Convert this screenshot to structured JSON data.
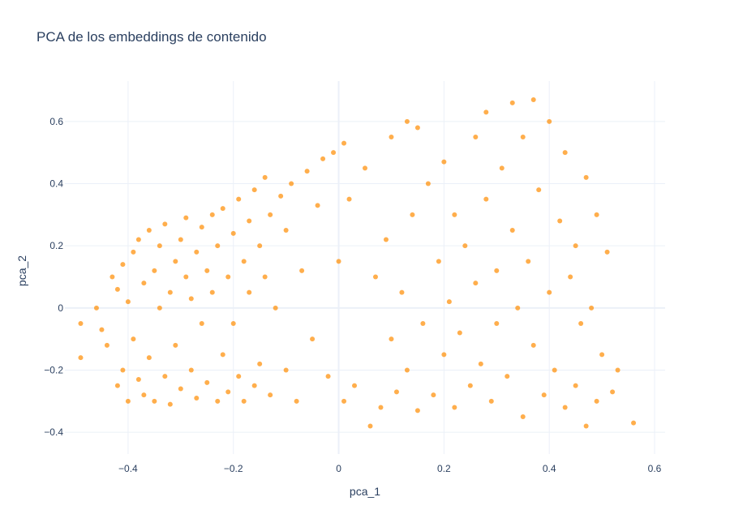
{
  "chart_data": {
    "type": "scatter",
    "title": "PCA de los embeddings de contenido",
    "xlabel": "pca_1",
    "ylabel": "pca_2",
    "xlim": [
      -0.52,
      0.62
    ],
    "ylim": [
      -0.47,
      0.73
    ],
    "xticks": [
      -0.4,
      -0.2,
      0,
      0.2,
      0.4,
      0.6
    ],
    "xtick_labels": [
      "−0.4",
      "−0.2",
      "0",
      "0.2",
      "0.4",
      "0.6"
    ],
    "yticks": [
      -0.4,
      -0.2,
      0,
      0.2,
      0.4,
      0.6
    ],
    "ytick_labels": [
      "−0.4",
      "−0.2",
      "0",
      "0.2",
      "0.4",
      "0.6"
    ],
    "grid": true,
    "marker_color": "#ff8c00",
    "background": "#ffffff",
    "grid_color": "#ebf0f8",
    "text_color": "#2a3f5f",
    "points": [
      [
        -0.49,
        -0.16
      ],
      [
        -0.49,
        -0.05
      ],
      [
        -0.46,
        0.0
      ],
      [
        -0.45,
        -0.07
      ],
      [
        -0.44,
        -0.12
      ],
      [
        -0.43,
        0.1
      ],
      [
        -0.42,
        0.06
      ],
      [
        -0.42,
        -0.25
      ],
      [
        -0.41,
        -0.2
      ],
      [
        -0.41,
        0.14
      ],
      [
        -0.4,
        0.02
      ],
      [
        -0.4,
        -0.3
      ],
      [
        -0.39,
        0.18
      ],
      [
        -0.39,
        -0.1
      ],
      [
        -0.38,
        0.22
      ],
      [
        -0.38,
        -0.23
      ],
      [
        -0.37,
        0.08
      ],
      [
        -0.37,
        -0.28
      ],
      [
        -0.36,
        0.25
      ],
      [
        -0.36,
        -0.16
      ],
      [
        -0.35,
        0.12
      ],
      [
        -0.35,
        -0.3
      ],
      [
        -0.34,
        0.0
      ],
      [
        -0.34,
        0.2
      ],
      [
        -0.33,
        -0.22
      ],
      [
        -0.33,
        0.27
      ],
      [
        -0.32,
        0.05
      ],
      [
        -0.32,
        -0.31
      ],
      [
        -0.31,
        0.15
      ],
      [
        -0.31,
        -0.12
      ],
      [
        -0.3,
        0.22
      ],
      [
        -0.3,
        -0.26
      ],
      [
        -0.29,
        0.1
      ],
      [
        -0.29,
        0.29
      ],
      [
        -0.28,
        -0.2
      ],
      [
        -0.28,
        0.03
      ],
      [
        -0.27,
        0.18
      ],
      [
        -0.27,
        -0.29
      ],
      [
        -0.26,
        0.26
      ],
      [
        -0.26,
        -0.05
      ],
      [
        -0.25,
        0.12
      ],
      [
        -0.25,
        -0.24
      ],
      [
        -0.24,
        0.3
      ],
      [
        -0.24,
        0.05
      ],
      [
        -0.23,
        -0.3
      ],
      [
        -0.23,
        0.2
      ],
      [
        -0.22,
        -0.15
      ],
      [
        -0.22,
        0.32
      ],
      [
        -0.21,
        0.1
      ],
      [
        -0.21,
        -0.27
      ],
      [
        -0.2,
        0.24
      ],
      [
        -0.2,
        -0.05
      ],
      [
        -0.19,
        0.35
      ],
      [
        -0.19,
        -0.22
      ],
      [
        -0.18,
        0.15
      ],
      [
        -0.18,
        -0.3
      ],
      [
        -0.17,
        0.28
      ],
      [
        -0.17,
        0.05
      ],
      [
        -0.16,
        0.38
      ],
      [
        -0.16,
        -0.25
      ],
      [
        -0.15,
        0.2
      ],
      [
        -0.15,
        -0.18
      ],
      [
        -0.14,
        0.42
      ],
      [
        -0.14,
        0.1
      ],
      [
        -0.13,
        -0.28
      ],
      [
        -0.13,
        0.3
      ],
      [
        -0.12,
        0.0
      ],
      [
        -0.11,
        0.36
      ],
      [
        -0.1,
        -0.2
      ],
      [
        -0.1,
        0.25
      ],
      [
        -0.09,
        0.4
      ],
      [
        -0.08,
        -0.3
      ],
      [
        -0.07,
        0.12
      ],
      [
        -0.06,
        0.44
      ],
      [
        -0.05,
        -0.1
      ],
      [
        -0.04,
        0.33
      ],
      [
        -0.03,
        0.48
      ],
      [
        -0.02,
        -0.22
      ],
      [
        -0.01,
        0.5
      ],
      [
        0.0,
        0.15
      ],
      [
        0.01,
        0.53
      ],
      [
        0.01,
        -0.3
      ],
      [
        0.02,
        0.35
      ],
      [
        0.03,
        -0.25
      ],
      [
        0.05,
        0.45
      ],
      [
        0.06,
        -0.38
      ],
      [
        0.07,
        0.1
      ],
      [
        0.08,
        -0.32
      ],
      [
        0.09,
        0.22
      ],
      [
        0.1,
        -0.1
      ],
      [
        0.1,
        0.55
      ],
      [
        0.11,
        -0.27
      ],
      [
        0.12,
        0.05
      ],
      [
        0.13,
        0.6
      ],
      [
        0.13,
        -0.2
      ],
      [
        0.14,
        0.3
      ],
      [
        0.15,
        -0.33
      ],
      [
        0.15,
        0.58
      ],
      [
        0.16,
        -0.05
      ],
      [
        0.17,
        0.4
      ],
      [
        0.18,
        -0.28
      ],
      [
        0.19,
        0.15
      ],
      [
        0.2,
        -0.15
      ],
      [
        0.2,
        0.47
      ],
      [
        0.21,
        0.02
      ],
      [
        0.22,
        -0.32
      ],
      [
        0.22,
        0.3
      ],
      [
        0.23,
        -0.08
      ],
      [
        0.24,
        0.2
      ],
      [
        0.25,
        -0.25
      ],
      [
        0.26,
        0.55
      ],
      [
        0.26,
        0.08
      ],
      [
        0.27,
        -0.18
      ],
      [
        0.28,
        0.35
      ],
      [
        0.28,
        0.63
      ],
      [
        0.29,
        -0.3
      ],
      [
        0.3,
        0.12
      ],
      [
        0.3,
        -0.05
      ],
      [
        0.31,
        0.45
      ],
      [
        0.32,
        -0.22
      ],
      [
        0.33,
        0.25
      ],
      [
        0.33,
        0.66
      ],
      [
        0.34,
        0.0
      ],
      [
        0.35,
        -0.35
      ],
      [
        0.35,
        0.55
      ],
      [
        0.36,
        0.15
      ],
      [
        0.37,
        -0.12
      ],
      [
        0.37,
        0.67
      ],
      [
        0.38,
        0.38
      ],
      [
        0.39,
        -0.28
      ],
      [
        0.4,
        0.05
      ],
      [
        0.4,
        0.6
      ],
      [
        0.41,
        -0.2
      ],
      [
        0.42,
        0.28
      ],
      [
        0.43,
        -0.32
      ],
      [
        0.43,
        0.5
      ],
      [
        0.44,
        0.1
      ],
      [
        0.45,
        -0.25
      ],
      [
        0.45,
        0.2
      ],
      [
        0.46,
        -0.05
      ],
      [
        0.47,
        0.42
      ],
      [
        0.47,
        -0.38
      ],
      [
        0.48,
        0.0
      ],
      [
        0.49,
        -0.3
      ],
      [
        0.49,
        0.3
      ],
      [
        0.5,
        -0.15
      ],
      [
        0.51,
        0.18
      ],
      [
        0.52,
        -0.27
      ],
      [
        0.53,
        -0.2
      ],
      [
        0.56,
        -0.37
      ]
    ]
  }
}
